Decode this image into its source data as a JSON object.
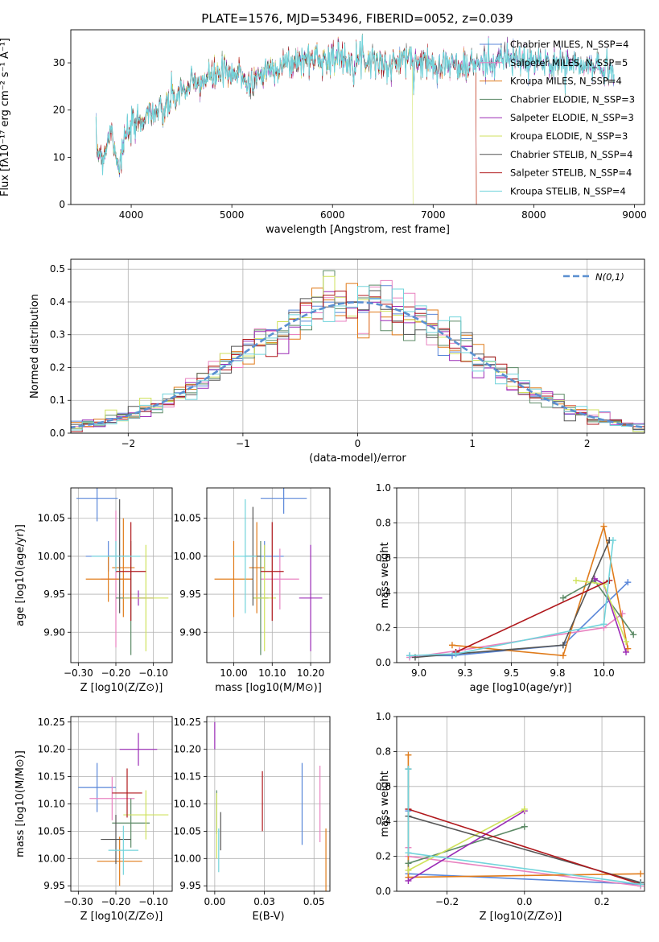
{
  "title": "PLATE=1576, MJD=53496, FIBERID=0052, z=0.039",
  "colors": {
    "chabrier_miles": "#5a87d9",
    "salpeter_miles": "#e882c0",
    "kroupa_miles": "#e07b1a",
    "chabrier_elodie": "#5c8a66",
    "salpeter_elodie": "#9a2ab6",
    "kroupa_elodie": "#cfe25c",
    "chabrier_stelib": "#555555",
    "salpeter_stelib": "#b0181c",
    "kroupa_stelib": "#72d4db",
    "gauss": "#5a8fd0"
  },
  "chart_data": [
    {
      "id": "spectrum",
      "type": "line",
      "xlabel": "wavelength [Angstrom, rest frame]",
      "ylabel": "Flux [fλ10⁻¹⁷ erg cm⁻² s⁻¹ A⁻¹]",
      "xlim": [
        3400,
        9100
      ],
      "ylim": [
        0,
        37
      ],
      "xticks": [
        4000,
        5000,
        6000,
        7000,
        8000,
        9000
      ],
      "yticks": [
        0,
        10,
        20,
        30
      ],
      "spectrum_anchors": [
        [
          3650,
          12
        ],
        [
          3720,
          10
        ],
        [
          3800,
          16
        ],
        [
          3880,
          8
        ],
        [
          3940,
          14
        ],
        [
          4000,
          16
        ],
        [
          4100,
          18
        ],
        [
          4200,
          20
        ],
        [
          4300,
          19
        ],
        [
          4400,
          22
        ],
        [
          4500,
          24
        ],
        [
          4600,
          25
        ],
        [
          4700,
          26
        ],
        [
          4800,
          27
        ],
        [
          4900,
          28
        ],
        [
          5000,
          27
        ],
        [
          5100,
          28
        ],
        [
          5175,
          25
        ],
        [
          5250,
          27
        ],
        [
          5400,
          29
        ],
        [
          5600,
          30
        ],
        [
          5800,
          31
        ],
        [
          6000,
          31
        ],
        [
          6200,
          31
        ],
        [
          6400,
          31
        ],
        [
          6560,
          29
        ],
        [
          6700,
          31
        ],
        [
          6900,
          30
        ],
        [
          7100,
          30
        ],
        [
          7300,
          29
        ],
        [
          7500,
          30
        ],
        [
          7700,
          31
        ],
        [
          8000,
          30
        ],
        [
          8300,
          30
        ],
        [
          8600,
          29
        ],
        [
          8800,
          29
        ]
      ],
      "legend": [
        "Chabrier MILES, N_SSP=4",
        "Salpeter MILES, N_SSP=5",
        "Kroupa MILES, N_SSP=4",
        "Chabrier ELODIE, N_SSP=3",
        "Salpeter ELODIE, N_SSP=3",
        "Kroupa ELODIE, N_SSP=3",
        "Chabrier STELIB, N_SSP=4",
        "Salpeter STELIB, N_SSP=4",
        "Kroupa STELIB, N_SSP=4"
      ],
      "legend_loc": "right"
    },
    {
      "id": "residuals",
      "type": "histogram",
      "xlabel": "(data-model)/error",
      "ylabel": "Normed distribution",
      "xlim": [
        -2.5,
        2.5
      ],
      "ylim": [
        0,
        0.53
      ],
      "xticks": [
        -2,
        -1,
        0,
        1,
        2
      ],
      "yticks": [
        0,
        0.1,
        0.2,
        0.3,
        0.4,
        0.5
      ],
      "bin_width": 0.1,
      "gauss_label": "N(0,1)",
      "legend_loc": "upper right",
      "grid": true
    },
    {
      "id": "age_vs_Z",
      "type": "errorbar",
      "xlabel": "Z [log10(Z/Z⊙)]",
      "ylabel": "age [log10(age/yr)]",
      "xlim": [
        -0.32,
        -0.05
      ],
      "ylim": [
        9.86,
        10.09
      ],
      "xticks": [
        -0.3,
        -0.2,
        -0.1
      ],
      "yticks": [
        9.9,
        9.95,
        10.0,
        10.05
      ],
      "grid": true,
      "points": [
        {
          "x": -0.25,
          "y": 10.076,
          "xe": 0.055,
          "ye": 0.03,
          "c": "chabrier_miles"
        },
        {
          "x": -0.22,
          "y": 10.0,
          "xe": 0.06,
          "ye": 0.02,
          "c": "chabrier_miles"
        },
        {
          "x": -0.2,
          "y": 9.97,
          "xe": 0.04,
          "ye": 0.09,
          "c": "salpeter_miles"
        },
        {
          "x": -0.22,
          "y": 9.97,
          "xe": 0.06,
          "ye": 0.03,
          "c": "kroupa_miles"
        },
        {
          "x": -0.18,
          "y": 9.985,
          "xe": 0.03,
          "ye": 0.065,
          "c": "kroupa_miles"
        },
        {
          "x": -0.16,
          "y": 9.945,
          "xe": 0.04,
          "ye": 0.075,
          "c": "chabrier_elodie"
        },
        {
          "x": -0.14,
          "y": 9.945,
          "xe": 0.04,
          "ye": 0.01,
          "c": "salpeter_elodie"
        },
        {
          "x": -0.12,
          "y": 9.945,
          "xe": 0.06,
          "ye": 0.07,
          "c": "kroupa_elodie"
        },
        {
          "x": -0.19,
          "y": 10.0,
          "xe": 0.03,
          "ye": 0.075,
          "c": "chabrier_stelib"
        },
        {
          "x": -0.16,
          "y": 9.98,
          "xe": 0.04,
          "ye": 0.065,
          "c": "salpeter_stelib"
        },
        {
          "x": -0.2,
          "y": 10.0,
          "xe": 0.065,
          "ye": 0.02,
          "c": "kroupa_stelib"
        }
      ]
    },
    {
      "id": "age_vs_mass",
      "type": "errorbar",
      "xlabel": "mass [log10(M/M⊙)]",
      "ylabel": "",
      "xlim": [
        9.93,
        10.25
      ],
      "ylim": [
        9.86,
        10.09
      ],
      "xticks": [
        10.0,
        10.1,
        10.2
      ],
      "yticks": [
        9.9,
        9.95,
        10.0,
        10.05
      ],
      "grid": true,
      "points": [
        {
          "x": 10.13,
          "y": 10.076,
          "xe": 0.06,
          "ye": 0.02,
          "c": "chabrier_miles"
        },
        {
          "x": 10.08,
          "y": 10.0,
          "xe": 0.05,
          "ye": 0.02,
          "c": "chabrier_miles"
        },
        {
          "x": 10.12,
          "y": 9.97,
          "xe": 0.05,
          "ye": 0.04,
          "c": "salpeter_miles"
        },
        {
          "x": 10.0,
          "y": 9.97,
          "xe": 0.05,
          "ye": 0.05,
          "c": "kroupa_miles"
        },
        {
          "x": 10.06,
          "y": 9.985,
          "xe": 0.02,
          "ye": 0.06,
          "c": "kroupa_miles"
        },
        {
          "x": 10.07,
          "y": 9.945,
          "xe": 0.02,
          "ye": 0.075,
          "c": "chabrier_elodie"
        },
        {
          "x": 10.2,
          "y": 9.945,
          "xe": 0.03,
          "ye": 0.07,
          "c": "salpeter_elodie"
        },
        {
          "x": 10.08,
          "y": 9.945,
          "xe": 0.03,
          "ye": 0.07,
          "c": "kroupa_elodie"
        },
        {
          "x": 10.05,
          "y": 10.0,
          "xe": 0.02,
          "ye": 0.065,
          "c": "chabrier_stelib"
        },
        {
          "x": 10.1,
          "y": 9.98,
          "xe": 0.03,
          "ye": 0.065,
          "c": "salpeter_stelib"
        },
        {
          "x": 10.03,
          "y": 10.0,
          "xe": 0.03,
          "ye": 0.075,
          "c": "kroupa_stelib"
        }
      ]
    },
    {
      "id": "weight_vs_age",
      "type": "line",
      "xlabel": "age [log10(age/yr)]",
      "ylabel": "mass weight",
      "xlim": [
        8.88,
        10.22
      ],
      "ylim": [
        0,
        1.0
      ],
      "xticks": [
        9.0,
        9.25,
        9.5,
        9.75,
        10.0
      ],
      "yticks": [
        0,
        0.2,
        0.4,
        0.6,
        0.8,
        1.0
      ],
      "grid": true,
      "series": [
        {
          "c": "chabrier_miles",
          "x": [
            8.95,
            9.18,
            9.78,
            10.13
          ],
          "y": [
            0.04,
            0.04,
            0.1,
            0.46
          ]
        },
        {
          "c": "salpeter_miles",
          "x": [
            8.95,
            9.22,
            10.0,
            10.1
          ],
          "y": [
            0.03,
            0.07,
            0.2,
            0.28
          ]
        },
        {
          "c": "kroupa_miles",
          "x": [
            9.18,
            9.78,
            10.0,
            10.13
          ],
          "y": [
            0.1,
            0.04,
            0.78,
            0.08
          ]
        },
        {
          "c": "chabrier_elodie",
          "x": [
            9.78,
            9.95,
            10.16
          ],
          "y": [
            0.37,
            0.47,
            0.16
          ]
        },
        {
          "c": "salpeter_elodie",
          "x": [
            9.95,
            10.0,
            10.12
          ],
          "y": [
            0.48,
            0.45,
            0.06
          ]
        },
        {
          "c": "kroupa_elodie",
          "x": [
            9.85,
            10.0,
            10.12
          ],
          "y": [
            0.47,
            0.45,
            0.12
          ]
        },
        {
          "c": "chabrier_stelib",
          "x": [
            8.98,
            9.2,
            9.78,
            10.03
          ],
          "y": [
            0.03,
            0.05,
            0.1,
            0.7
          ]
        },
        {
          "c": "salpeter_stelib",
          "x": [
            9.2,
            10.03
          ],
          "y": [
            0.06,
            0.47
          ]
        },
        {
          "c": "kroupa_stelib",
          "x": [
            8.95,
            9.2,
            10.0,
            10.05
          ],
          "y": [
            0.04,
            0.05,
            0.22,
            0.7
          ]
        }
      ]
    },
    {
      "id": "mass_vs_Z",
      "type": "errorbar",
      "xlabel": "Z [log10(Z/Z⊙)]",
      "ylabel": "mass [log10(M/M⊙)]",
      "xlim": [
        -0.32,
        -0.05
      ],
      "ylim": [
        9.94,
        10.26
      ],
      "xticks": [
        -0.3,
        -0.2,
        -0.1
      ],
      "yticks": [
        9.95,
        10.0,
        10.05,
        10.1,
        10.15,
        10.2,
        10.25
      ],
      "grid": true,
      "points": [
        {
          "x": -0.25,
          "y": 10.13,
          "xe": 0.05,
          "ye": 0.045,
          "c": "chabrier_miles"
        },
        {
          "x": -0.21,
          "y": 10.11,
          "xe": 0.06,
          "ye": 0.04,
          "c": "salpeter_miles"
        },
        {
          "x": -0.19,
          "y": 9.995,
          "xe": 0.06,
          "ye": 0.045,
          "c": "kroupa_miles"
        },
        {
          "x": -0.16,
          "y": 10.065,
          "xe": 0.05,
          "ye": 0.045,
          "c": "chabrier_elodie"
        },
        {
          "x": -0.14,
          "y": 10.2,
          "xe": 0.05,
          "ye": 0.03,
          "c": "salpeter_elodie"
        },
        {
          "x": -0.12,
          "y": 10.08,
          "xe": 0.06,
          "ye": 0.045,
          "c": "kroupa_elodie"
        },
        {
          "x": -0.2,
          "y": 10.035,
          "xe": 0.04,
          "ye": 0.045,
          "c": "chabrier_stelib"
        },
        {
          "x": -0.17,
          "y": 10.12,
          "xe": 0.04,
          "ye": 0.045,
          "c": "salpeter_stelib"
        },
        {
          "x": -0.18,
          "y": 10.015,
          "xe": 0.04,
          "ye": 0.045,
          "c": "kroupa_stelib"
        }
      ]
    },
    {
      "id": "mass_vs_ebv",
      "type": "errorbar",
      "xlabel": "E(B-V)",
      "ylabel": "",
      "xlim": [
        -0.004,
        0.058
      ],
      "ylim": [
        9.94,
        10.26
      ],
      "xticks": [
        0.0,
        0.025,
        0.05
      ],
      "yticks": [
        9.95,
        10.0,
        10.05,
        10.1,
        10.15,
        10.2,
        10.25
      ],
      "grid": true,
      "points": [
        {
          "x": 0.044,
          "y": 10.1,
          "xe": 0,
          "ye": 0.075,
          "c": "chabrier_miles"
        },
        {
          "x": 0.053,
          "y": 10.1,
          "xe": 0,
          "ye": 0.07,
          "c": "salpeter_miles"
        },
        {
          "x": 0.056,
          "y": 9.995,
          "xe": 0,
          "ye": 0.06,
          "c": "kroupa_miles"
        },
        {
          "x": 0.001,
          "y": 10.085,
          "xe": 0,
          "ye": 0.04,
          "c": "chabrier_elodie"
        },
        {
          "x": 0.0,
          "y": 10.225,
          "xe": 0,
          "ye": 0.025,
          "c": "salpeter_elodie"
        },
        {
          "x": 0.001,
          "y": 10.06,
          "xe": 0,
          "ye": 0.06,
          "c": "kroupa_elodie"
        },
        {
          "x": 0.003,
          "y": 10.05,
          "xe": 0,
          "ye": 0.035,
          "c": "chabrier_stelib"
        },
        {
          "x": 0.024,
          "y": 10.105,
          "xe": 0,
          "ye": 0.055,
          "c": "salpeter_stelib"
        },
        {
          "x": 0.002,
          "y": 10.015,
          "xe": 0,
          "ye": 0.04,
          "c": "kroupa_stelib"
        }
      ]
    },
    {
      "id": "weight_vs_Z",
      "type": "line",
      "xlabel": "Z [log10(Z/Z⊙)]",
      "ylabel": "mass weight",
      "xlim": [
        -0.33,
        0.31
      ],
      "ylim": [
        0,
        1.0
      ],
      "xticks": [
        -0.2,
        0.0,
        0.2
      ],
      "yticks": [
        0,
        0.2,
        0.4,
        0.6,
        0.8,
        1.0
      ],
      "grid": true,
      "series": [
        {
          "c": "chabrier_miles",
          "x": [
            -0.3,
            -0.3,
            0.3
          ],
          "y": [
            0.46,
            0.1,
            0.04
          ]
        },
        {
          "c": "salpeter_miles",
          "x": [
            -0.3,
            -0.3,
            0.3
          ],
          "y": [
            0.25,
            0.2,
            0.03
          ]
        },
        {
          "c": "kroupa_miles",
          "x": [
            -0.3,
            -0.3,
            0.3
          ],
          "y": [
            0.78,
            0.08,
            0.1
          ]
        },
        {
          "c": "chabrier_elodie",
          "x": [
            -0.3,
            0.0
          ],
          "y": [
            0.16,
            0.37
          ]
        },
        {
          "c": "salpeter_elodie",
          "x": [
            -0.3,
            0.0
          ],
          "y": [
            0.06,
            0.46
          ]
        },
        {
          "c": "kroupa_elodie",
          "x": [
            -0.3,
            0.0
          ],
          "y": [
            0.12,
            0.47
          ]
        },
        {
          "c": "chabrier_stelib",
          "x": [
            -0.3,
            -0.3,
            0.3
          ],
          "y": [
            0.7,
            0.43,
            0.05
          ]
        },
        {
          "c": "salpeter_stelib",
          "x": [
            -0.3,
            0.3
          ],
          "y": [
            0.47,
            0.04
          ]
        },
        {
          "c": "kroupa_stelib",
          "x": [
            -0.3,
            -0.3,
            0.3
          ],
          "y": [
            0.7,
            0.22,
            0.04
          ]
        }
      ]
    }
  ]
}
